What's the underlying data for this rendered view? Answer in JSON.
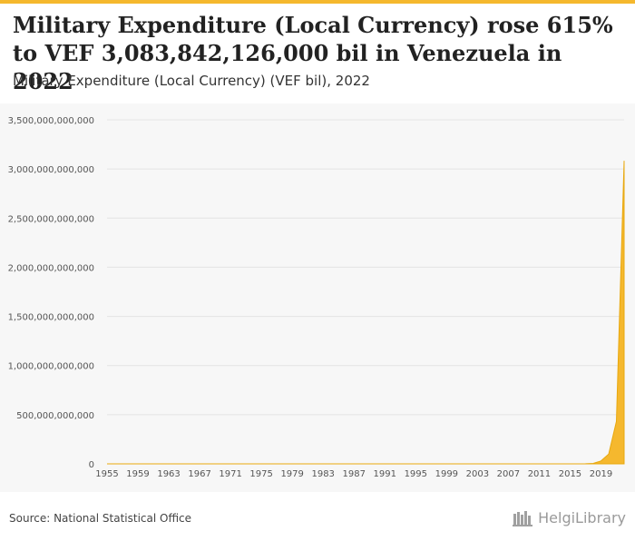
{
  "title": "Military Expenditure (Local Currency) rose 615% to VEF 3,083,842,126,000 bil in Venezuela in 2022",
  "subtitle": "Military Expenditure (Local Currency) (VEF bil), 2022",
  "source": "Source: National Statistical Office",
  "brand": "HelgiLibrary",
  "colors": {
    "accent": "#f5b82e",
    "area_fill": "#f5b82e",
    "area_stroke": "#e8a80e",
    "grid": "#e4e4e4",
    "panel": "#f7f7f7"
  },
  "chart_data": {
    "type": "area",
    "title": "Military Expenditure (Local Currency) rose 615% to VEF 3,083,842,126,000 bil in Venezuela in 2022",
    "ylabel": "",
    "xlabel": "",
    "ylim": [
      0,
      3500000000000
    ],
    "xlim": [
      1955,
      2022
    ],
    "grid": true,
    "y_ticks": [
      0,
      500000000000,
      1000000000000,
      1500000000000,
      2000000000000,
      2500000000000,
      3000000000000,
      3500000000000
    ],
    "y_tick_labels": [
      "0",
      "500,000,000,000",
      "1,000,000,000,000",
      "1,500,000,000,000",
      "2,000,000,000,000",
      "2,500,000,000,000",
      "3,000,000,000,000",
      "3,500,000,000,000"
    ],
    "x_ticks": [
      1955,
      1959,
      1963,
      1967,
      1971,
      1975,
      1979,
      1983,
      1987,
      1991,
      1995,
      1999,
      2003,
      2007,
      2011,
      2015,
      2019
    ],
    "x_tick_labels": [
      "1955",
      "1959",
      "1963",
      "1967",
      "1971",
      "1975",
      "1979",
      "1983",
      "1987",
      "1991",
      "1995",
      "1999",
      "2003",
      "2007",
      "2011",
      "2015",
      "2019"
    ],
    "series": [
      {
        "x": [
          1955,
          1956,
          1957,
          1958,
          1959,
          1960,
          1961,
          1962,
          1963,
          1964,
          1965,
          1966,
          1967,
          1968,
          1969,
          1970,
          1971,
          1972,
          1973,
          1974,
          1975,
          1976,
          1977,
          1978,
          1979,
          1980,
          1981,
          1982,
          1983,
          1984,
          1985,
          1986,
          1987,
          1988,
          1989,
          1990,
          1991,
          1992,
          1993,
          1994,
          1995,
          1996,
          1997,
          1998,
          1999,
          2000,
          2001,
          2002,
          2003,
          2004,
          2005,
          2006,
          2007,
          2008,
          2009,
          2010,
          2011,
          2012,
          2013,
          2014,
          2015,
          2016,
          2017,
          2018,
          2019,
          2020,
          2021,
          2022
        ],
        "values": [
          0,
          0,
          0,
          0,
          0,
          0,
          0,
          0,
          0,
          0,
          0,
          0,
          0,
          0,
          0,
          0,
          0,
          0,
          0,
          0,
          0,
          0,
          0,
          0,
          0,
          0,
          0,
          0,
          0,
          0,
          0,
          0,
          0,
          0,
          0,
          0,
          0,
          0,
          0,
          0,
          0,
          0,
          0,
          0,
          0,
          0,
          0,
          0,
          0,
          0,
          0,
          0,
          0,
          0,
          0,
          0,
          0,
          0,
          0,
          0,
          0,
          0,
          1000000000,
          5000000000,
          30000000000,
          100000000000,
          431000000000,
          3083842126000
        ]
      }
    ]
  }
}
